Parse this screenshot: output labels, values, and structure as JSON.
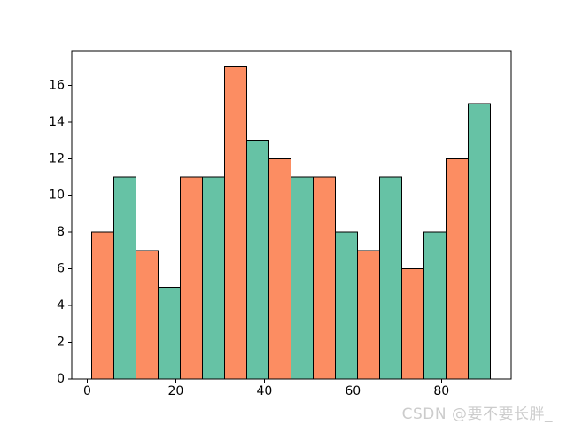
{
  "watermark": {
    "text": "CSDN @要不要长胖_",
    "color": "#cccccc"
  },
  "chart_data": {
    "type": "bar",
    "subtype": "histogram",
    "title": "",
    "xlabel": "",
    "ylabel": "",
    "bin_start": 1,
    "bin_width": 5,
    "bin_edges": [
      1,
      6,
      11,
      16,
      21,
      26,
      31,
      36,
      41,
      46,
      51,
      56,
      61,
      66,
      71,
      76,
      81,
      86,
      91
    ],
    "values": [
      8,
      11,
      7,
      5,
      11,
      11,
      17,
      13,
      12,
      11,
      11,
      8,
      7,
      11,
      6,
      8,
      12,
      15
    ],
    "bar_colors_alternating": [
      "#FC8D62",
      "#66C2A5"
    ],
    "edge_color": "#000000",
    "x_ticks": [
      0,
      20,
      40,
      60,
      80
    ],
    "y_ticks": [
      0,
      2,
      4,
      6,
      8,
      10,
      12,
      14,
      16
    ],
    "xlim": [
      -3.5,
      95.75
    ],
    "ylim": [
      0,
      17.85
    ],
    "grid": false,
    "legend": null,
    "background": "#ffffff",
    "spine_color": "#000000",
    "tick_label_color": "#000000"
  }
}
